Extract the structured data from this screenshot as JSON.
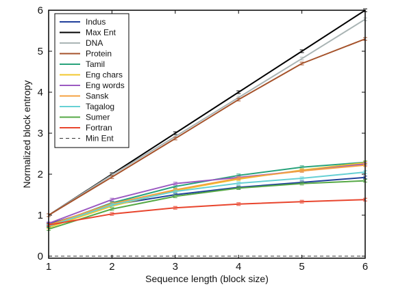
{
  "chart_data": {
    "type": "line",
    "xlabel": "Sequence length (block size)",
    "ylabel": "Normalized block entropy",
    "xlim": [
      1,
      6
    ],
    "ylim": [
      -0.05,
      6
    ],
    "x_ticks": [
      "1",
      "2",
      "3",
      "4",
      "5",
      "6"
    ],
    "y_ticks": [
      "0",
      "1",
      "2",
      "3",
      "4",
      "5",
      "6"
    ],
    "grid": false,
    "legend_position": "top-left",
    "x": [
      1,
      2,
      3,
      4,
      5,
      6
    ],
    "series": [
      {
        "name": "Indus",
        "color": "#1f3f9a",
        "dash": "solid",
        "values": [
          0.78,
          1.25,
          1.5,
          1.68,
          1.8,
          1.92
        ]
      },
      {
        "name": "Max Ent",
        "color": "#000000",
        "dash": "solid",
        "values": [
          1.0,
          2.0,
          3.0,
          4.0,
          5.0,
          6.0
        ]
      },
      {
        "name": "DNA",
        "color": "#a9b4b4",
        "dash": "solid",
        "values": [
          1.0,
          1.98,
          2.92,
          3.87,
          4.82,
          5.78
        ]
      },
      {
        "name": "Protein",
        "color": "#a5522a",
        "dash": "solid",
        "values": [
          1.0,
          1.93,
          2.87,
          3.82,
          4.7,
          5.3
        ]
      },
      {
        "name": "Tamil",
        "color": "#27a27a",
        "dash": "solid",
        "values": [
          0.74,
          1.3,
          1.7,
          1.97,
          2.17,
          2.29
        ]
      },
      {
        "name": "Eng chars",
        "color": "#f2c72e",
        "dash": "solid",
        "values": [
          0.7,
          1.22,
          1.6,
          1.88,
          2.1,
          2.28
        ]
      },
      {
        "name": "Eng words",
        "color": "#9b59c1",
        "dash": "solid",
        "values": [
          0.8,
          1.38,
          1.77,
          1.92,
          2.08,
          2.25
        ]
      },
      {
        "name": "Sansk",
        "color": "#f5a040",
        "dash": "solid",
        "values": [
          0.76,
          1.28,
          1.62,
          1.9,
          2.08,
          2.22
        ]
      },
      {
        "name": "Tagalog",
        "color": "#66d0d4",
        "dash": "solid",
        "values": [
          0.73,
          1.25,
          1.58,
          1.78,
          1.9,
          2.05
        ]
      },
      {
        "name": "Sumer",
        "color": "#55a845",
        "dash": "solid",
        "values": [
          0.66,
          1.15,
          1.46,
          1.66,
          1.77,
          1.84
        ]
      },
      {
        "name": "Fortran",
        "color": "#e8442c",
        "dash": "solid",
        "values": [
          0.76,
          1.03,
          1.18,
          1.27,
          1.33,
          1.38
        ]
      },
      {
        "name": "Min Ent",
        "color": "#333333",
        "dash": "dashed",
        "values": [
          0.0,
          0.0,
          0.0,
          0.0,
          0.0,
          0.0
        ]
      }
    ]
  }
}
